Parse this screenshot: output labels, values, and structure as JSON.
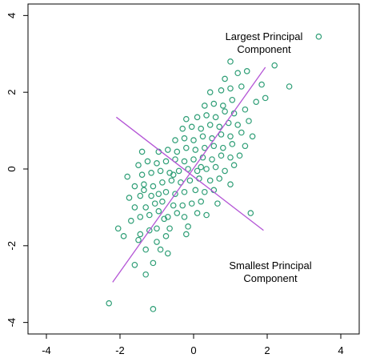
{
  "chart_data": {
    "type": "scatter",
    "title": "",
    "xlabel": "",
    "ylabel": "",
    "xlim": [
      -4.5,
      4.5
    ],
    "ylim": [
      -4.3,
      4.3
    ],
    "x_ticks": [
      "-4",
      "-2",
      "0",
      "2",
      "4"
    ],
    "y_ticks": [
      "-4",
      "-2",
      "0",
      "2",
      "4"
    ],
    "grid": false,
    "colors": {
      "points": "#2e9e76",
      "pc_lines": "#b455d6",
      "axes": "#000000"
    },
    "annotations": {
      "largest": [
        "Largest Principal",
        "Component"
      ],
      "smallest": [
        "Smallest Principal",
        "Component"
      ]
    },
    "principal_components": {
      "largest": {
        "from": [
          -2.2,
          -2.95
        ],
        "to": [
          1.95,
          2.65
        ]
      },
      "smallest": {
        "from": [
          -2.1,
          1.35
        ],
        "to": [
          1.9,
          -1.6
        ]
      }
    },
    "points": [
      [
        -2.3,
        -3.5
      ],
      [
        -1.1,
        -3.65
      ],
      [
        -1.6,
        -2.5
      ],
      [
        -1.3,
        -2.75
      ],
      [
        -1.1,
        -2.45
      ],
      [
        -1.3,
        -2.1
      ],
      [
        -0.9,
        -2.1
      ],
      [
        -1.0,
        -1.9
      ],
      [
        -0.7,
        -2.2
      ],
      [
        -0.75,
        -1.75
      ],
      [
        -1.5,
        -1.85
      ],
      [
        -1.9,
        -1.75
      ],
      [
        -1.45,
        -1.7
      ],
      [
        -1.2,
        -1.6
      ],
      [
        -1.0,
        -1.55
      ],
      [
        -0.65,
        -1.55
      ],
      [
        -0.2,
        -1.7
      ],
      [
        -0.15,
        -1.5
      ],
      [
        -2.05,
        -1.55
      ],
      [
        -1.7,
        -1.35
      ],
      [
        -1.45,
        -1.25
      ],
      [
        -1.2,
        -1.2
      ],
      [
        -0.95,
        -1.1
      ],
      [
        -0.7,
        -1.25
      ],
      [
        -0.45,
        -1.15
      ],
      [
        -0.25,
        -1.25
      ],
      [
        0.1,
        -1.15
      ],
      [
        0.35,
        -1.2
      ],
      [
        -1.6,
        -1.0
      ],
      [
        -1.3,
        -1.0
      ],
      [
        -1.05,
        -0.9
      ],
      [
        -0.85,
        -0.85
      ],
      [
        -0.55,
        -0.95
      ],
      [
        -0.3,
        -0.95
      ],
      [
        -0.05,
        -0.9
      ],
      [
        0.2,
        -0.85
      ],
      [
        -1.75,
        -0.75
      ],
      [
        -1.45,
        -0.7
      ],
      [
        -1.15,
        -0.7
      ],
      [
        -0.95,
        -0.65
      ],
      [
        -0.75,
        -0.6
      ],
      [
        -0.5,
        -0.65
      ],
      [
        -0.25,
        -0.6
      ],
      [
        0.05,
        -0.55
      ],
      [
        0.3,
        -0.6
      ],
      [
        0.55,
        -0.55
      ],
      [
        -1.6,
        -0.45
      ],
      [
        -1.35,
        -0.4
      ],
      [
        -1.1,
        -0.45
      ],
      [
        -0.85,
        -0.35
      ],
      [
        -0.6,
        -0.3
      ],
      [
        -0.35,
        -0.35
      ],
      [
        -0.1,
        -0.3
      ],
      [
        0.15,
        -0.25
      ],
      [
        0.45,
        -0.3
      ],
      [
        0.7,
        -0.25
      ],
      [
        1.0,
        -0.4
      ],
      [
        -1.8,
        -0.2
      ],
      [
        -1.4,
        -0.15
      ],
      [
        -1.15,
        -0.1
      ],
      [
        -0.9,
        -0.05
      ],
      [
        -0.65,
        -0.1
      ],
      [
        -0.4,
        -0.05
      ],
      [
        -0.15,
        0.0
      ],
      [
        0.1,
        -0.05
      ],
      [
        0.35,
        0.0
      ],
      [
        0.6,
        0.05
      ],
      [
        0.85,
        -0.05
      ],
      [
        1.1,
        0.1
      ],
      [
        -1.5,
        0.1
      ],
      [
        -1.25,
        0.2
      ],
      [
        -1.0,
        0.15
      ],
      [
        -0.75,
        0.2
      ],
      [
        -0.5,
        0.25
      ],
      [
        -0.25,
        0.2
      ],
      [
        0.0,
        0.25
      ],
      [
        0.25,
        0.3
      ],
      [
        0.5,
        0.25
      ],
      [
        0.75,
        0.35
      ],
      [
        1.0,
        0.3
      ],
      [
        1.25,
        0.35
      ],
      [
        -0.95,
        0.45
      ],
      [
        -0.7,
        0.5
      ],
      [
        -0.45,
        0.45
      ],
      [
        -0.2,
        0.55
      ],
      [
        0.05,
        0.5
      ],
      [
        0.3,
        0.55
      ],
      [
        0.55,
        0.6
      ],
      [
        0.8,
        0.55
      ],
      [
        1.05,
        0.65
      ],
      [
        1.4,
        0.6
      ],
      [
        -0.5,
        0.75
      ],
      [
        -0.25,
        0.8
      ],
      [
        0.0,
        0.75
      ],
      [
        0.25,
        0.85
      ],
      [
        0.5,
        0.8
      ],
      [
        0.75,
        0.9
      ],
      [
        1.0,
        0.85
      ],
      [
        1.3,
        0.95
      ],
      [
        1.6,
        0.85
      ],
      [
        -0.3,
        1.05
      ],
      [
        -0.05,
        1.1
      ],
      [
        0.2,
        1.05
      ],
      [
        0.45,
        1.15
      ],
      [
        0.7,
        1.1
      ],
      [
        0.95,
        1.2
      ],
      [
        1.2,
        1.15
      ],
      [
        1.5,
        1.25
      ],
      [
        -0.2,
        1.3
      ],
      [
        0.1,
        1.35
      ],
      [
        0.35,
        1.4
      ],
      [
        0.6,
        1.35
      ],
      [
        0.85,
        1.5
      ],
      [
        1.1,
        1.45
      ],
      [
        1.4,
        1.55
      ],
      [
        0.3,
        1.65
      ],
      [
        0.55,
        1.7
      ],
      [
        0.8,
        1.65
      ],
      [
        1.05,
        1.8
      ],
      [
        1.7,
        1.75
      ],
      [
        1.95,
        1.85
      ],
      [
        0.45,
        2.0
      ],
      [
        0.75,
        2.05
      ],
      [
        1.0,
        2.1
      ],
      [
        1.3,
        2.15
      ],
      [
        0.85,
        2.35
      ],
      [
        1.2,
        2.5
      ],
      [
        1.45,
        2.55
      ],
      [
        1.85,
        2.2
      ],
      [
        2.6,
        2.15
      ],
      [
        1.0,
        2.8
      ],
      [
        2.2,
        2.7
      ],
      [
        3.4,
        3.45
      ],
      [
        -1.4,
        0.45
      ],
      [
        -0.8,
        -1.3
      ],
      [
        -1.35,
        -0.55
      ],
      [
        -0.55,
        -0.15
      ],
      [
        0.65,
        -0.9
      ],
      [
        1.55,
        -1.15
      ],
      [
        0.2,
        0.05
      ]
    ]
  }
}
